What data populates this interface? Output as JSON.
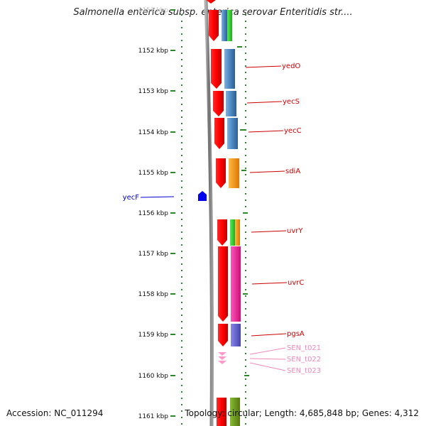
{
  "title": "Salmonella enterica subsp. enterica serovar Enteritidis str....",
  "footer": {
    "accession": "Accession: NC_011294",
    "topology": "Topology: circular; Length: 4,685,848 bp; Genes: 4,312"
  },
  "ruler": {
    "unit": "kbp",
    "ticks": [
      "1151 kbp",
      "1152 kbp",
      "1153 kbp",
      "1154 kbp",
      "1155 kbp",
      "1156 kbp",
      "1157 kbp",
      "1158 kbp",
      "1159 kbp",
      "1160 kbp",
      "1161 kbp"
    ]
  },
  "genes": [
    {
      "name": "yedO",
      "color": "#cc0000"
    },
    {
      "name": "yecS",
      "color": "#cc0000"
    },
    {
      "name": "yecC",
      "color": "#cc0000"
    },
    {
      "name": "sdiA",
      "color": "#cc0000"
    },
    {
      "name": "yecF",
      "color": "#0000cc"
    },
    {
      "name": "uvrY",
      "color": "#cc0000"
    },
    {
      "name": "uvrC",
      "color": "#cc0000"
    },
    {
      "name": "pgsA",
      "color": "#cc0000"
    },
    {
      "name": "SEN_t021",
      "color": "#ee88bb"
    },
    {
      "name": "SEN_t022",
      "color": "#ee88bb"
    },
    {
      "name": "SEN_t023",
      "color": "#ee88bb"
    }
  ],
  "colors": {
    "forward_gene": "#ff0000",
    "reverse_gene": "#0000ff",
    "trna": "#ff99cc",
    "backbone": "#808080",
    "ruler": "#2a8a2a",
    "cog_blue": "#4a86c0",
    "cog_green": "#33cc33",
    "cog_orange": "#ff9900",
    "cog_magenta": "#ee2299",
    "cog_purple": "#6666cc",
    "cog_olive": "#669922"
  }
}
